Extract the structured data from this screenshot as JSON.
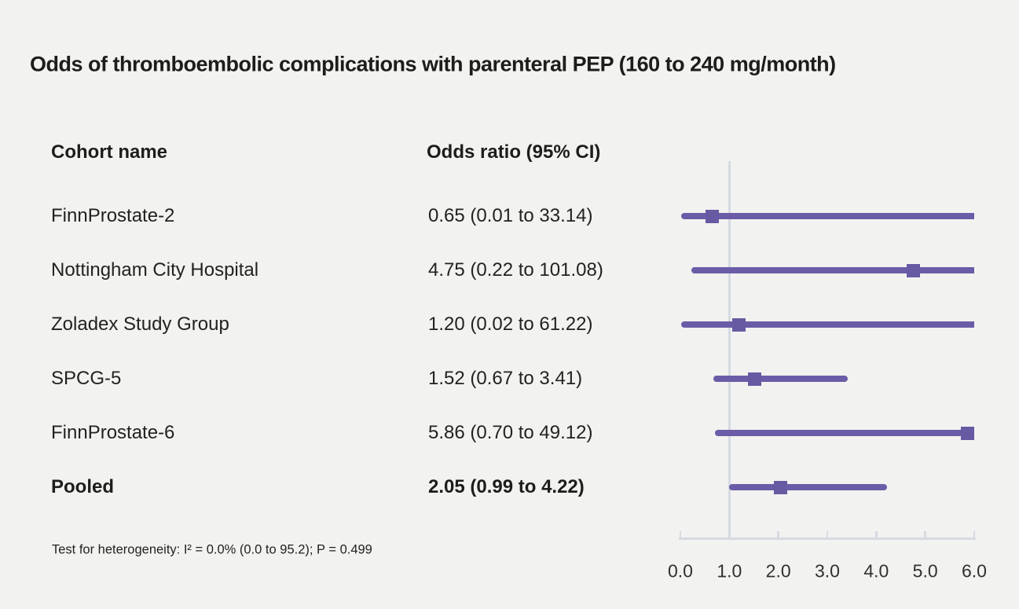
{
  "title": "Odds of thromboembolic complications with parenteral PEP (160 to 240 mg/month)",
  "columns": {
    "cohort": "Cohort name",
    "odds_ratio": "Odds ratio (95% CI)"
  },
  "footnote": "Test for heterogeneity: I² = 0.0% (0.0 to 95.2); P = 0.499",
  "colors": {
    "background": "#f2f2f0",
    "accent_purple": "#6b5ca7",
    "marker_purple": "#675aa3",
    "axis_gray": "#d6dae1",
    "text": "#1d1d1b"
  },
  "chart_data": {
    "type": "forest",
    "title": "Odds of thromboembolic complications with parenteral PEP (160 to 240 mg/month)",
    "xlabel": "",
    "ylabel": "",
    "xlim": [
      0.0,
      6.0
    ],
    "x_ticks": [
      0.0,
      1.0,
      2.0,
      3.0,
      4.0,
      5.0,
      6.0
    ],
    "x_tick_labels": [
      "0.0",
      "1.0",
      "2.0",
      "3.0",
      "4.0",
      "5.0",
      "6.0"
    ],
    "reference_line": 1.0,
    "grid": false,
    "legend": false,
    "rows": [
      {
        "label": "FinnProstate-2",
        "or_text": "0.65 (0.01 to 33.14)",
        "or": 0.65,
        "ci_low": 0.01,
        "ci_high": 33.14,
        "bold": false
      },
      {
        "label": "Nottingham City Hospital",
        "or_text": "4.75 (0.22 to 101.08)",
        "or": 4.75,
        "ci_low": 0.22,
        "ci_high": 101.08,
        "bold": false
      },
      {
        "label": "Zoladex Study Group",
        "or_text": "1.20 (0.02 to 61.22)",
        "or": 1.2,
        "ci_low": 0.02,
        "ci_high": 61.22,
        "bold": false
      },
      {
        "label": "SPCG-5",
        "or_text": "1.52 (0.67 to 3.41)",
        "or": 1.52,
        "ci_low": 0.67,
        "ci_high": 3.41,
        "bold": false
      },
      {
        "label": "FinnProstate-6",
        "or_text": "5.86 (0.70 to 49.12)",
        "or": 5.86,
        "ci_low": 0.7,
        "ci_high": 49.12,
        "bold": false
      },
      {
        "label": "Pooled",
        "or_text": "2.05 (0.99 to 4.22)",
        "or": 2.05,
        "ci_low": 0.99,
        "ci_high": 4.22,
        "bold": true
      }
    ]
  }
}
